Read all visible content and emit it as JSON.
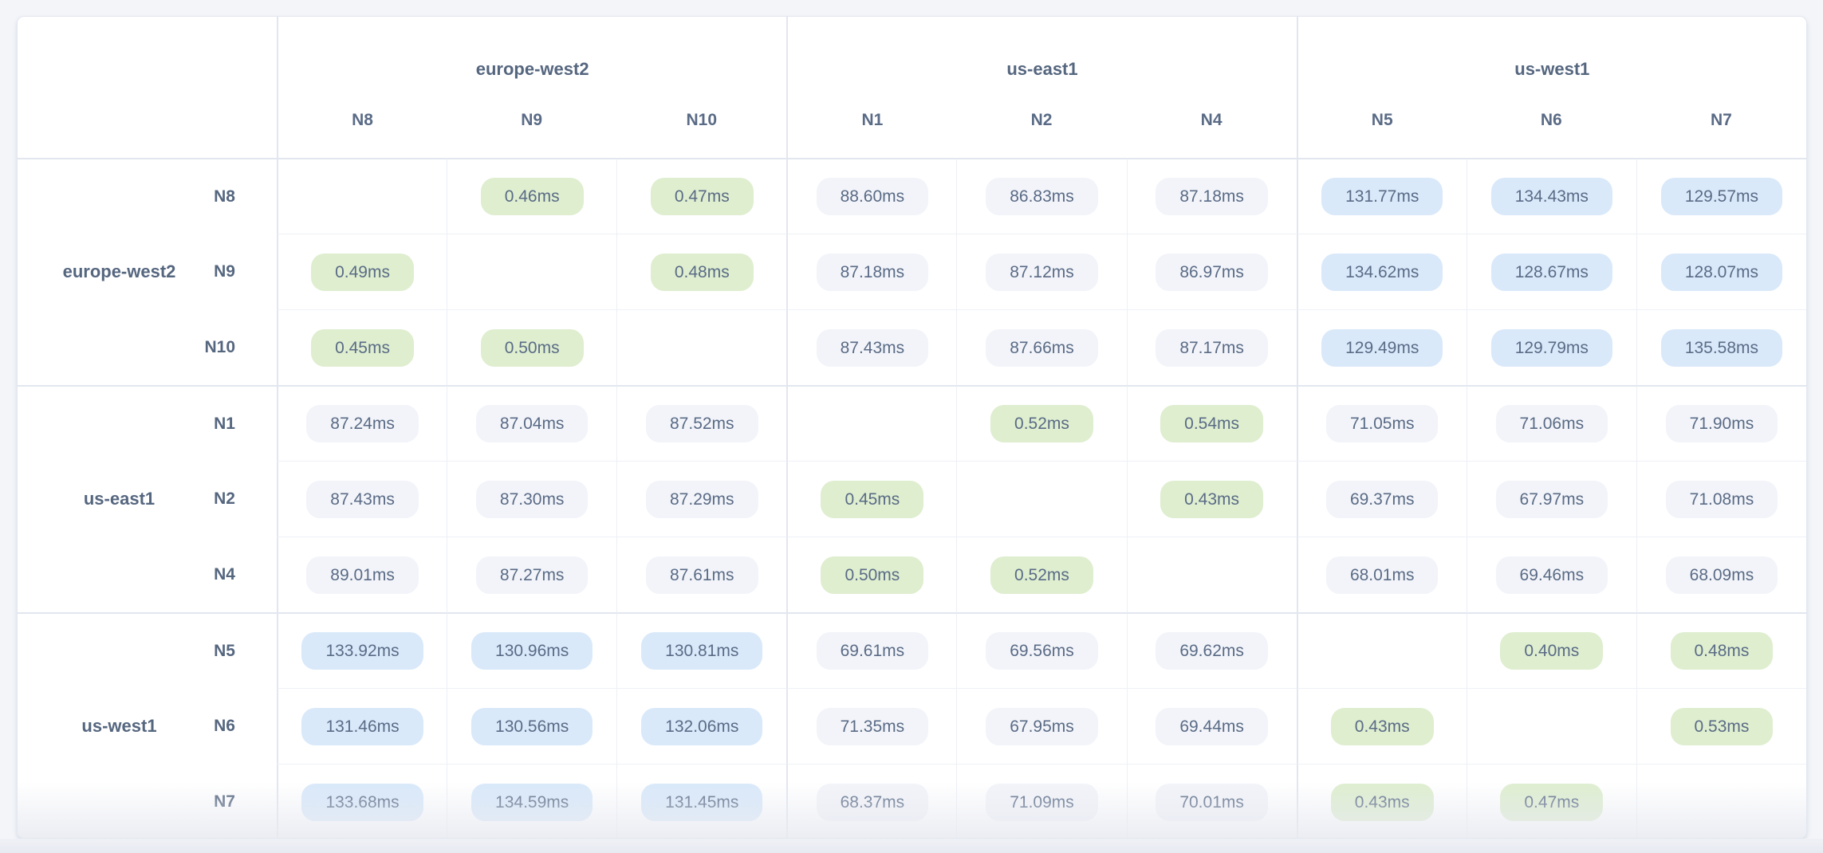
{
  "chart_data": {
    "type": "heatmap",
    "title": "",
    "unit": "ms",
    "groups": [
      {
        "region": "europe-west2",
        "nodes": [
          "N8",
          "N9",
          "N10"
        ]
      },
      {
        "region": "us-east1",
        "nodes": [
          "N1",
          "N2",
          "N4"
        ]
      },
      {
        "region": "us-west1",
        "nodes": [
          "N5",
          "N6",
          "N7"
        ]
      }
    ],
    "columns": [
      "N8",
      "N9",
      "N10",
      "N1",
      "N2",
      "N4",
      "N5",
      "N6",
      "N7"
    ],
    "rows": [
      {
        "node": "N8",
        "region": "europe-west2",
        "values": [
          null,
          0.46,
          0.47,
          88.6,
          86.83,
          87.18,
          131.77,
          134.43,
          129.57
        ]
      },
      {
        "node": "N9",
        "region": "europe-west2",
        "values": [
          0.49,
          null,
          0.48,
          87.18,
          87.12,
          86.97,
          134.62,
          128.67,
          128.07
        ]
      },
      {
        "node": "N10",
        "region": "europe-west2",
        "values": [
          0.45,
          0.5,
          null,
          87.43,
          87.66,
          87.17,
          129.49,
          129.79,
          135.58
        ]
      },
      {
        "node": "N1",
        "region": "us-east1",
        "values": [
          87.24,
          87.04,
          87.52,
          null,
          0.52,
          0.54,
          71.05,
          71.06,
          71.9
        ]
      },
      {
        "node": "N2",
        "region": "us-east1",
        "values": [
          87.43,
          87.3,
          87.29,
          0.45,
          null,
          0.43,
          69.37,
          67.97,
          71.08
        ]
      },
      {
        "node": "N4",
        "region": "us-east1",
        "values": [
          89.01,
          87.27,
          87.61,
          0.5,
          0.52,
          null,
          68.01,
          69.46,
          68.09
        ]
      },
      {
        "node": "N5",
        "region": "us-west1",
        "values": [
          133.92,
          130.96,
          130.81,
          69.61,
          69.56,
          69.62,
          null,
          0.4,
          0.48
        ]
      },
      {
        "node": "N6",
        "region": "us-west1",
        "values": [
          131.46,
          130.56,
          132.06,
          71.35,
          67.95,
          69.44,
          0.43,
          null,
          0.53
        ]
      },
      {
        "node": "N7",
        "region": "us-west1",
        "values": [
          133.68,
          134.59,
          131.45,
          68.37,
          71.09,
          70.01,
          0.43,
          0.47,
          null
        ]
      }
    ],
    "value_suffix": "ms",
    "color_rules": {
      "low_under_ms": 1,
      "high_over_ms": 100
    },
    "colors": {
      "low": "#deeecf",
      "mid": "#f2f4f9",
      "high": "#d9e9fa",
      "value_text": "#5a6b86",
      "label_text": "#55667f"
    },
    "legend_position": "none",
    "grid": true
  }
}
